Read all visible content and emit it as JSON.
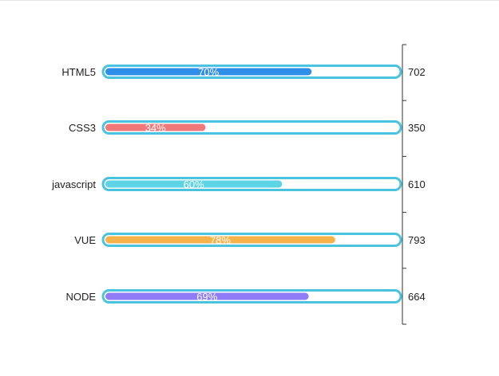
{
  "chart_data": {
    "type": "bar",
    "orientation": "horizontal",
    "categories": [
      "HTML5",
      "CSS3",
      "javascript",
      "VUE",
      "NODE"
    ],
    "percentages": [
      70,
      34,
      60,
      78,
      69
    ],
    "bar_labels": [
      "70%",
      "34%",
      "60%",
      "78%",
      "69%"
    ],
    "right_values": [
      702,
      350,
      610,
      793,
      664
    ],
    "xlim": [
      0,
      100
    ],
    "colors": [
      "#2f8ee8",
      "#f07878",
      "#5dd4e6",
      "#f8b24a",
      "#8f7cf6"
    ],
    "track_border_color": "#4ac3df",
    "track_fill_color": "#ffffff",
    "bar_label_color": "#ffffff",
    "axis_color": "#333333",
    "grid": false,
    "legend": "none"
  }
}
